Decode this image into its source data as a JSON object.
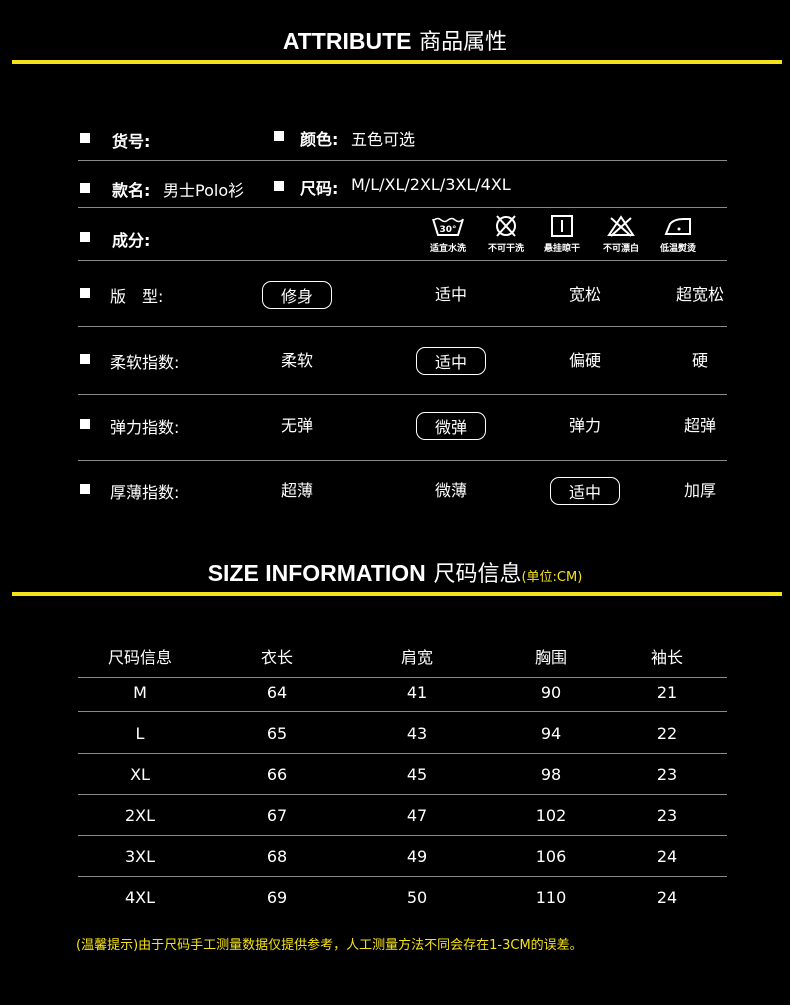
{
  "attribute_header": {
    "en": "ATTRIBUTE",
    "cn": "商品属性"
  },
  "attributes": {
    "item_no_label": "货号:",
    "color_label": "颜色:",
    "color_value": "五色可选",
    "style_label": "款名:",
    "style_value": "男士Polo衫",
    "size_label": "尺码:",
    "size_value": "M/L/XL/2XL/3XL/4XL",
    "material_label": "成分:"
  },
  "care": [
    {
      "icon": "wash-30-icon",
      "label": "适宜水洗"
    },
    {
      "icon": "no-dry-clean-icon",
      "label": "不可干洗"
    },
    {
      "icon": "hang-dry-icon",
      "label": "悬挂晾干"
    },
    {
      "icon": "no-bleach-icon",
      "label": "不可漂白"
    },
    {
      "icon": "low-iron-icon",
      "label": "低温熨烫"
    }
  ],
  "scales": [
    {
      "label": "版　型:",
      "options": [
        "修身",
        "适中",
        "宽松",
        "超宽松"
      ],
      "selected": 0
    },
    {
      "label": "柔软指数:",
      "options": [
        "柔软",
        "适中",
        "偏硬",
        "硬"
      ],
      "selected": 1
    },
    {
      "label": "弹力指数:",
      "options": [
        "无弹",
        "微弹",
        "弹力",
        "超弹"
      ],
      "selected": 1
    },
    {
      "label": "厚薄指数:",
      "options": [
        "超薄",
        "微薄",
        "适中",
        "加厚"
      ],
      "selected": 2
    }
  ],
  "size_header": {
    "en": "SIZE INFORMATION",
    "cn": "尺码信息",
    "unit": "(单位:CM)"
  },
  "size_table": {
    "headers": [
      "尺码信息",
      "衣长",
      "肩宽",
      "胸围",
      "袖长"
    ],
    "rows": [
      [
        "M",
        "64",
        "41",
        "90",
        "21"
      ],
      [
        "L",
        "65",
        "43",
        "94",
        "22"
      ],
      [
        "XL",
        "66",
        "45",
        "98",
        "23"
      ],
      [
        "2XL",
        "67",
        "47",
        "102",
        "23"
      ],
      [
        "3XL",
        "68",
        "49",
        "106",
        "24"
      ],
      [
        "4XL",
        "69",
        "50",
        "110",
        "24"
      ]
    ]
  },
  "note": "(温馨提示)由于尺码手工测量数据仅提供参考，人工测量方法不同会存在1-3CM的误差。",
  "colors": {
    "accent": "#f5e21a",
    "background": "#000000"
  }
}
